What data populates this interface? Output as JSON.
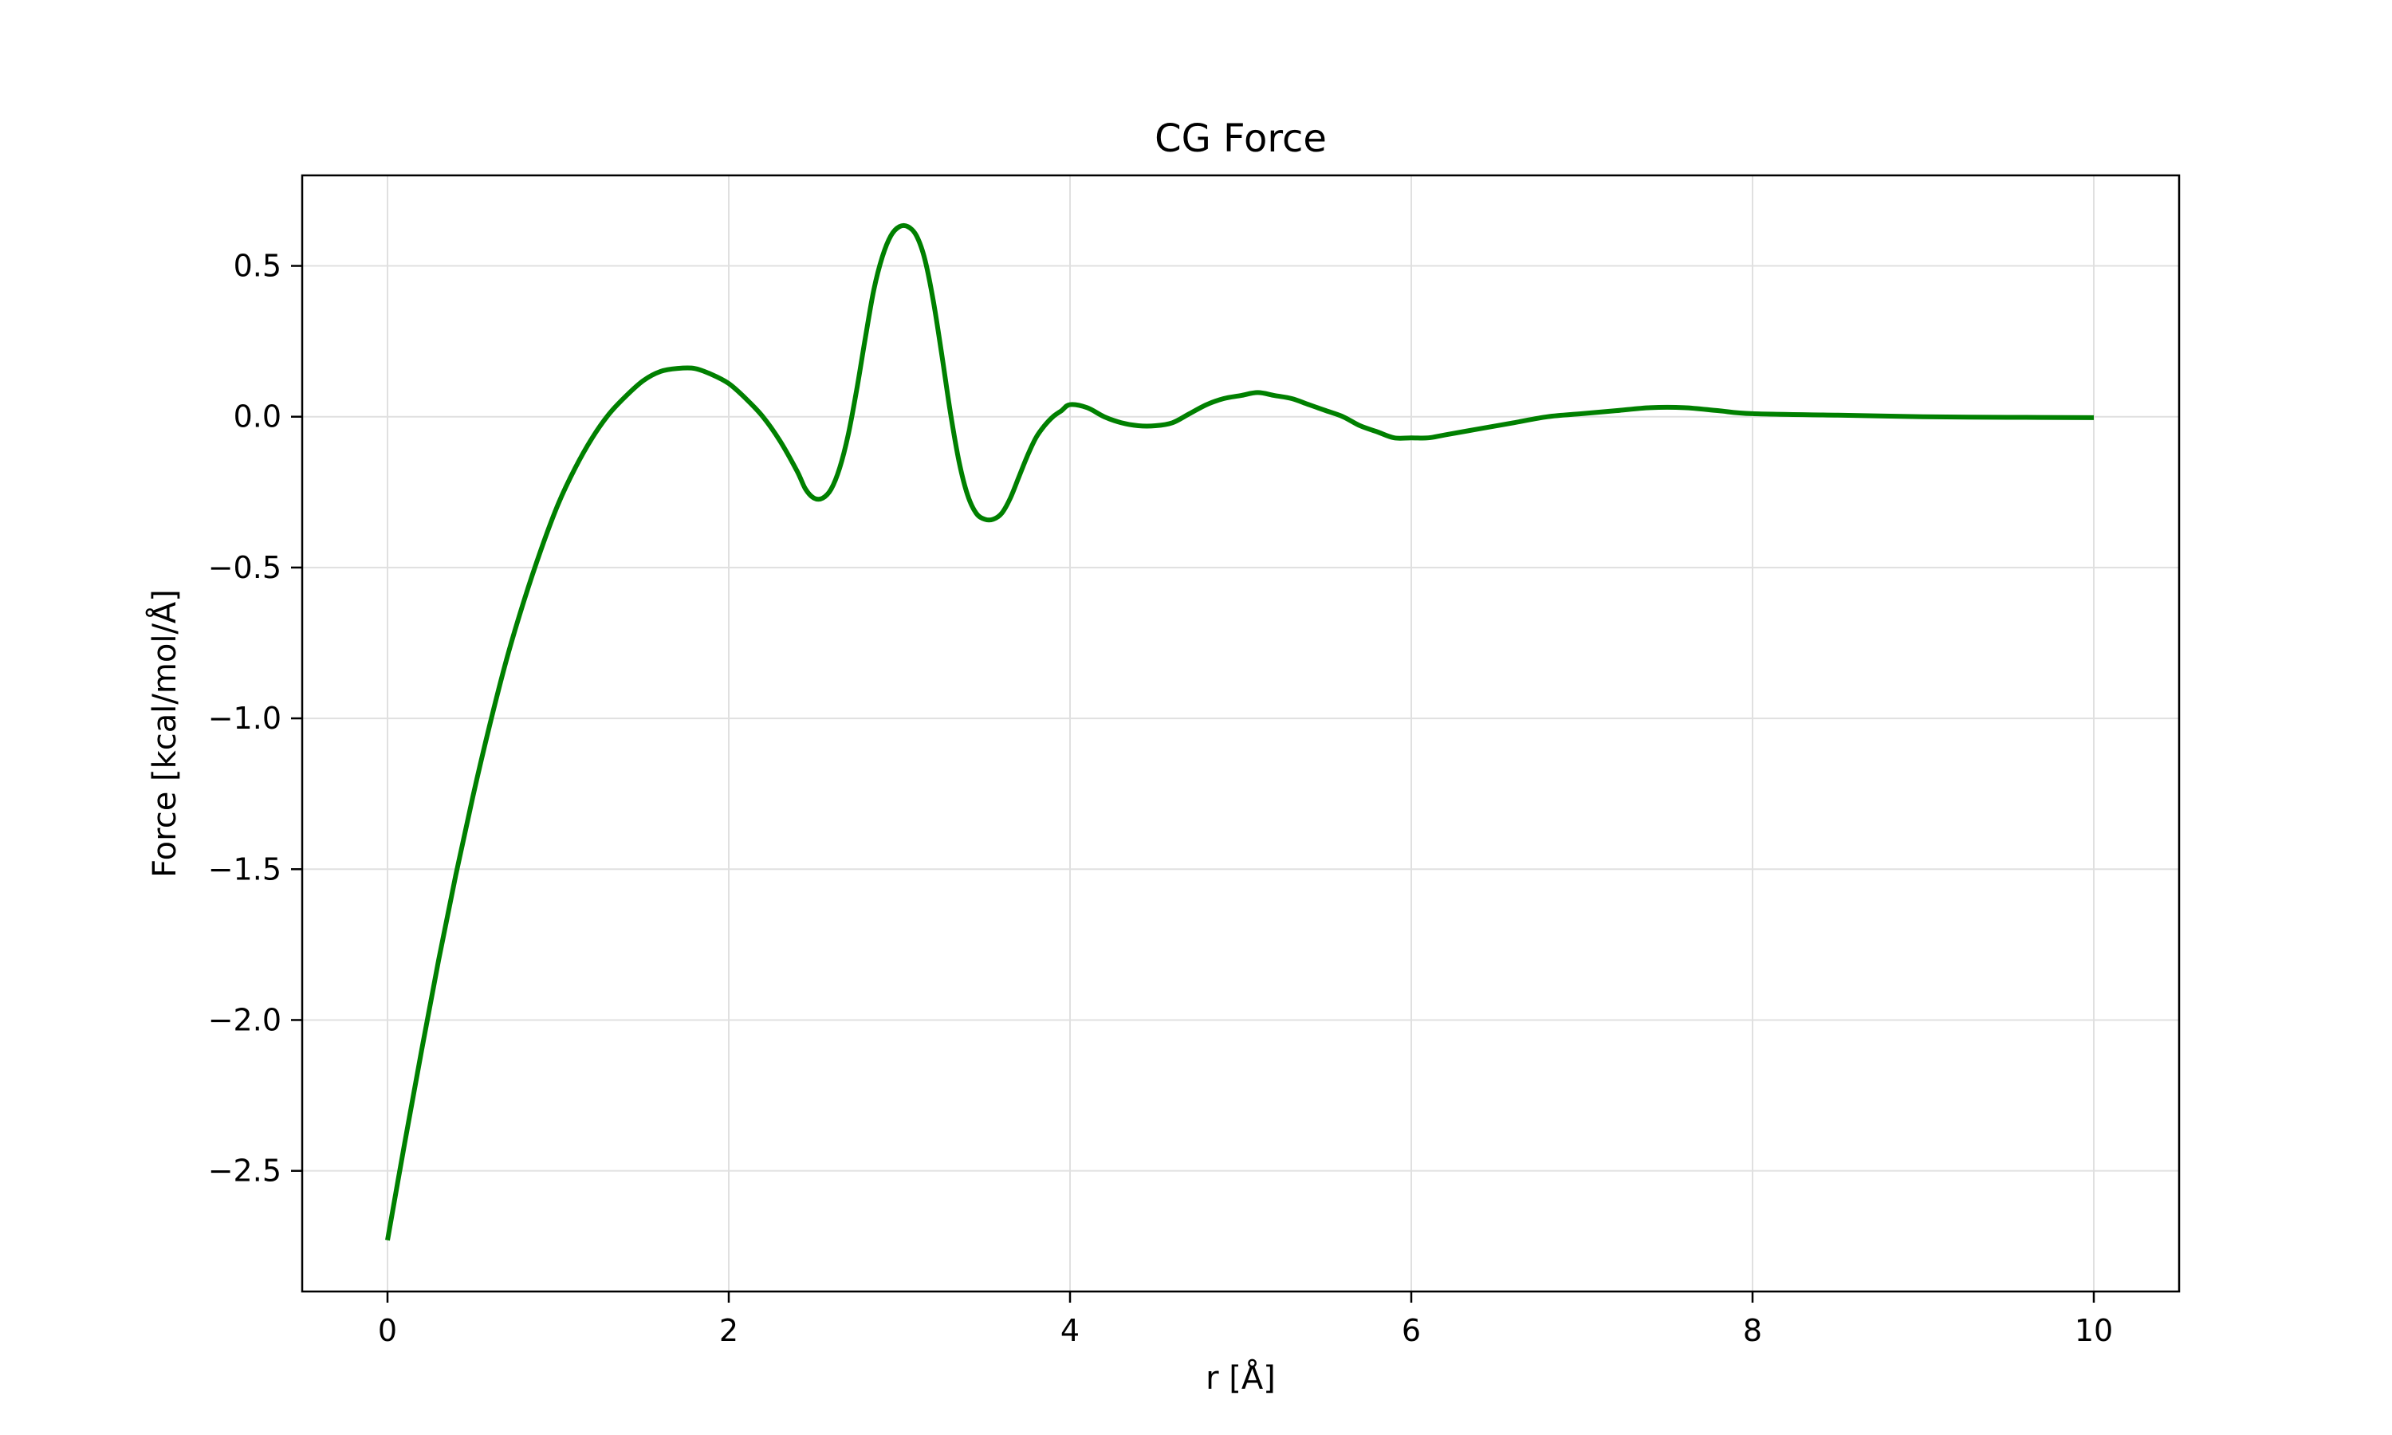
{
  "chart_data": {
    "type": "line",
    "title": "CG Force",
    "xlabel": "r [Å]",
    "ylabel": "Force [kcal/mol/Å]",
    "xlim": [
      -0.5,
      10.5
    ],
    "ylim": [
      -2.9,
      0.8
    ],
    "xticks": [
      0,
      2,
      4,
      6,
      8,
      10
    ],
    "yticks": [
      0.5,
      0.0,
      -0.5,
      -1.0,
      -1.5,
      -2.0,
      -2.5
    ],
    "xtick_labels": [
      "0",
      "2",
      "4",
      "6",
      "8",
      "10"
    ],
    "ytick_labels": [
      "0.5",
      "0.0",
      "−0.5",
      "−1.0",
      "−1.5",
      "−2.0",
      "−2.5"
    ],
    "grid": true,
    "legend": "none",
    "colors": {
      "line": "#008000",
      "grid": "#e0e0e0",
      "axes": "#000000"
    },
    "series": [
      {
        "color": "#008000",
        "x": [
          0.0,
          0.1,
          0.2,
          0.3,
          0.4,
          0.5,
          0.6,
          0.7,
          0.8,
          0.9,
          1.0,
          1.1,
          1.2,
          1.3,
          1.4,
          1.5,
          1.6,
          1.7,
          1.8,
          1.9,
          2.0,
          2.1,
          2.2,
          2.3,
          2.4,
          2.45,
          2.5,
          2.55,
          2.6,
          2.65,
          2.7,
          2.75,
          2.8,
          2.85,
          2.9,
          2.95,
          3.0,
          3.05,
          3.1,
          3.15,
          3.2,
          3.25,
          3.3,
          3.35,
          3.4,
          3.45,
          3.5,
          3.55,
          3.6,
          3.65,
          3.7,
          3.75,
          3.8,
          3.85,
          3.9,
          3.95,
          4.0,
          4.1,
          4.2,
          4.3,
          4.4,
          4.5,
          4.6,
          4.7,
          4.8,
          4.9,
          5.0,
          5.1,
          5.2,
          5.3,
          5.4,
          5.5,
          5.6,
          5.7,
          5.8,
          5.9,
          6.0,
          6.1,
          6.2,
          6.4,
          6.6,
          6.8,
          7.0,
          7.2,
          7.4,
          7.6,
          7.8,
          8.0,
          8.5,
          9.0,
          9.5,
          10.0
        ],
        "y": [
          -2.73,
          -2.41,
          -2.1,
          -1.8,
          -1.52,
          -1.26,
          -1.02,
          -0.8,
          -0.61,
          -0.44,
          -0.29,
          -0.17,
          -0.07,
          0.01,
          0.07,
          0.12,
          0.15,
          0.16,
          0.16,
          0.14,
          0.11,
          0.06,
          0.0,
          -0.08,
          -0.18,
          -0.24,
          -0.27,
          -0.27,
          -0.24,
          -0.17,
          -0.06,
          0.09,
          0.26,
          0.42,
          0.53,
          0.6,
          0.63,
          0.63,
          0.6,
          0.52,
          0.38,
          0.2,
          0.01,
          -0.15,
          -0.26,
          -0.32,
          -0.34,
          -0.34,
          -0.32,
          -0.27,
          -0.2,
          -0.13,
          -0.07,
          -0.03,
          0.0,
          0.02,
          0.04,
          0.03,
          0.0,
          -0.02,
          -0.03,
          -0.03,
          -0.02,
          0.01,
          0.04,
          0.06,
          0.07,
          0.08,
          0.07,
          0.06,
          0.04,
          0.02,
          0.0,
          -0.03,
          -0.05,
          -0.07,
          -0.07,
          -0.07,
          -0.06,
          -0.04,
          -0.02,
          0.0,
          0.01,
          0.02,
          0.03,
          0.03,
          0.02,
          0.01,
          0.005,
          0.0,
          -0.002,
          -0.003
        ]
      }
    ]
  }
}
